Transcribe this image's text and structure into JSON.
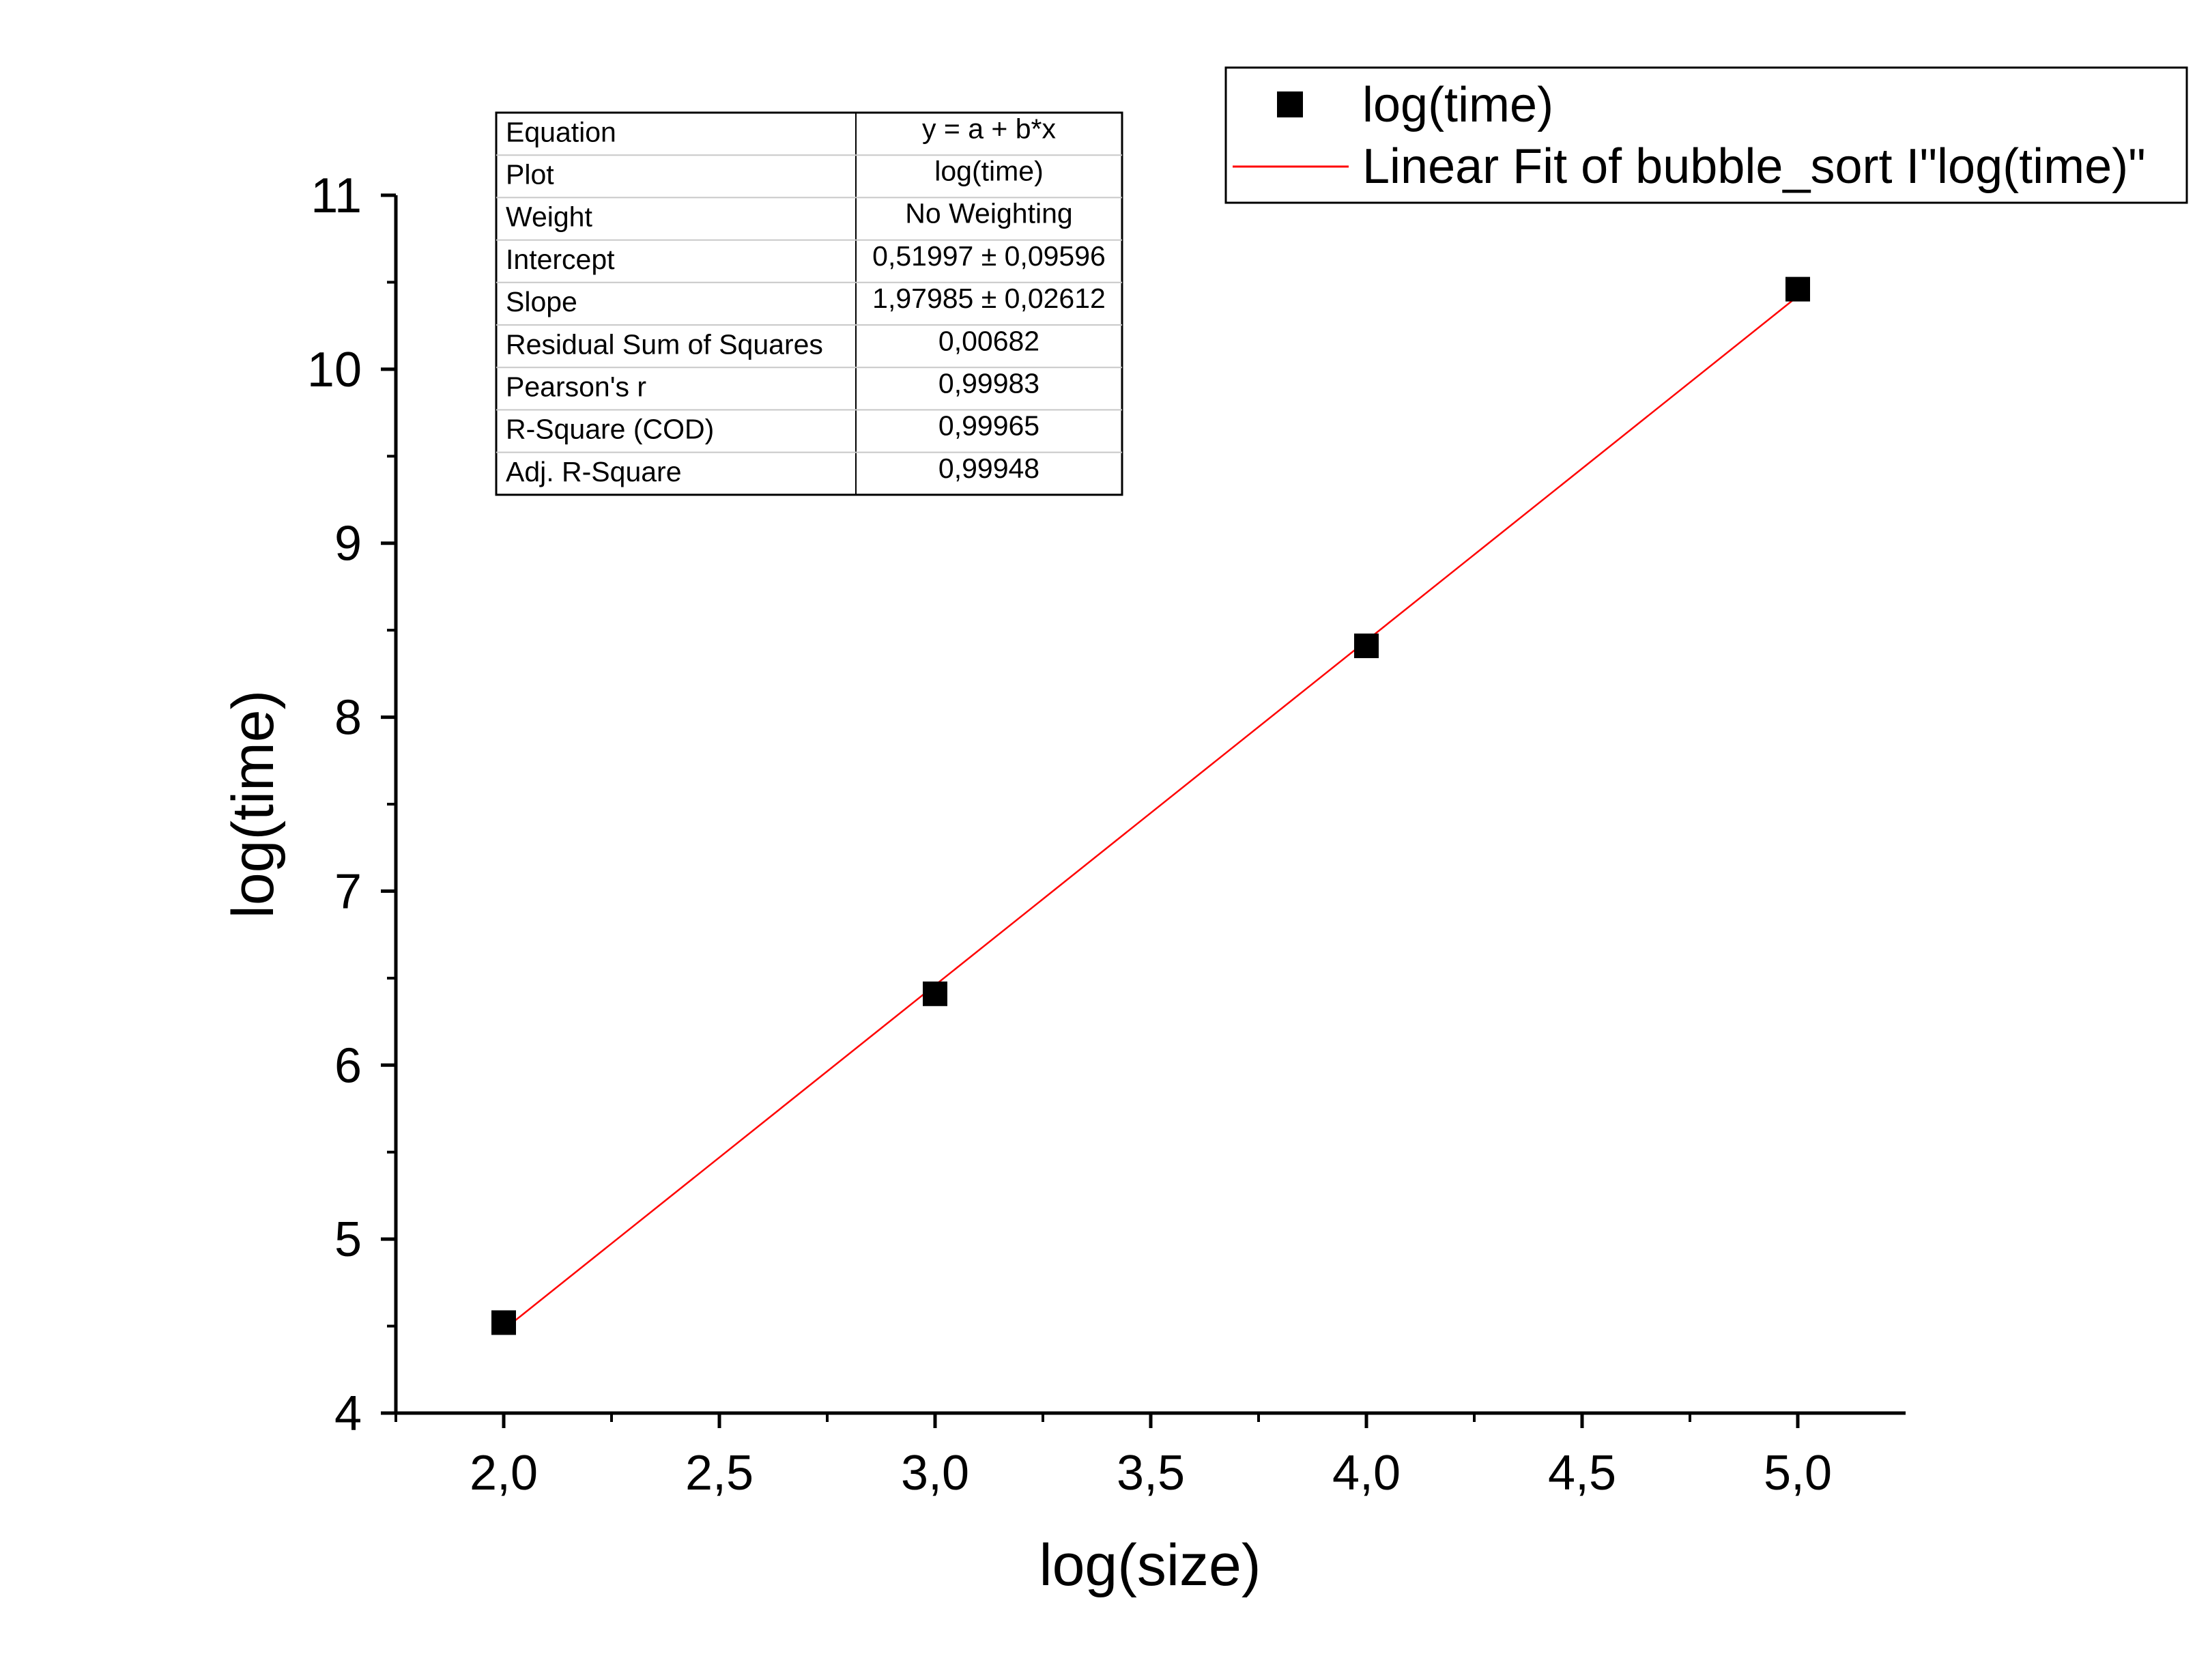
{
  "chart_data": {
    "type": "scatter",
    "title": "",
    "xlabel": "log(size)",
    "ylabel": "log(time)",
    "xlim": [
      1.75,
      5.25
    ],
    "ylim": [
      4,
      11
    ],
    "x_ticks": [
      "2,0",
      "2,5",
      "3,0",
      "3,5",
      "4,0",
      "4,5",
      "5,0"
    ],
    "x_tick_values": [
      2.0,
      2.5,
      3.0,
      3.5,
      4.0,
      4.5,
      5.0
    ],
    "y_ticks": [
      "4",
      "5",
      "6",
      "7",
      "8",
      "9",
      "10",
      "11"
    ],
    "y_tick_values": [
      4,
      5,
      6,
      7,
      8,
      9,
      10,
      11
    ],
    "grid": false,
    "legend_position": "top-right",
    "series": [
      {
        "name": "log(time)",
        "kind": "scatter",
        "marker": "square",
        "color": "#000000",
        "x": [
          2.0,
          3.0,
          4.0,
          5.0
        ],
        "y": [
          4.52,
          6.41,
          8.41,
          10.46
        ]
      },
      {
        "name": "Linear Fit of bubble_sort I\"log(time)\"",
        "kind": "line",
        "color": "#ff0000",
        "x": [
          2.0,
          5.0
        ],
        "y": [
          4.47967,
          10.41922
        ]
      }
    ],
    "stats_table": {
      "rows": [
        {
          "label": "Equation",
          "value": "y = a + b*x"
        },
        {
          "label": "Plot",
          "value": "log(time)"
        },
        {
          "label": "Weight",
          "value": "No Weighting"
        },
        {
          "label": "Intercept",
          "value": "0,51997 ± 0,09596"
        },
        {
          "label": "Slope",
          "value": "1,97985 ± 0,02612"
        },
        {
          "label": "Residual Sum of Squares",
          "value": "0,00682"
        },
        {
          "label": "Pearson's r",
          "value": "0,99983"
        },
        {
          "label": "R-Square (COD)",
          "value": "0,99965"
        },
        {
          "label": "Adj. R-Square",
          "value": "0,99948"
        }
      ]
    }
  }
}
